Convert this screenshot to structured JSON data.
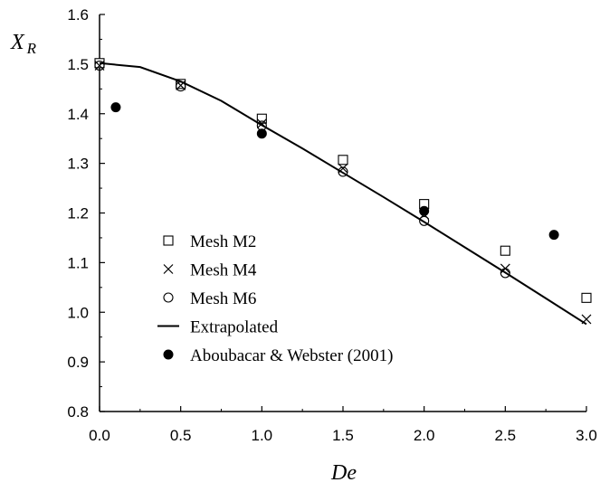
{
  "chart_data": {
    "type": "scatter",
    "xlabel": "De",
    "ylabel": "X",
    "ylabel_sub": "R",
    "xlim": [
      0.0,
      3.0
    ],
    "ylim": [
      0.8,
      1.6
    ],
    "xticks": [
      "0.0",
      "0.5",
      "1.0",
      "1.5",
      "2.0",
      "2.5",
      "3.0"
    ],
    "yticks": [
      "0.8",
      "0.9",
      "1.0",
      "1.1",
      "1.2",
      "1.3",
      "1.4",
      "1.5",
      "1.6"
    ],
    "grid": false,
    "legend_position": "lower-left",
    "series": [
      {
        "name": "Mesh M2",
        "marker": "square",
        "points": [
          [
            0.0,
            1.502
          ],
          [
            0.5,
            1.46
          ],
          [
            1.0,
            1.39
          ],
          [
            1.5,
            1.307
          ],
          [
            2.0,
            1.218
          ],
          [
            2.5,
            1.124
          ],
          [
            3.0,
            1.029
          ]
        ]
      },
      {
        "name": "Mesh M4",
        "marker": "x",
        "points": [
          [
            0.0,
            1.497
          ],
          [
            0.5,
            1.457
          ],
          [
            1.0,
            1.38
          ],
          [
            1.5,
            1.29
          ],
          [
            2.0,
            1.197
          ],
          [
            2.5,
            1.088
          ],
          [
            3.0,
            0.986
          ]
        ]
      },
      {
        "name": "Mesh M6",
        "marker": "circle-open",
        "points": [
          [
            0.0,
            1.497
          ],
          [
            0.5,
            1.455
          ],
          [
            1.0,
            1.376
          ],
          [
            1.5,
            1.283
          ],
          [
            2.0,
            1.184
          ],
          [
            2.5,
            1.079
          ]
        ]
      },
      {
        "name": "Extrapolated",
        "marker": "line",
        "points": [
          [
            0.0,
            1.502
          ],
          [
            0.25,
            1.494
          ],
          [
            0.5,
            1.465
          ],
          [
            0.75,
            1.426
          ],
          [
            1.0,
            1.377
          ],
          [
            1.25,
            1.33
          ],
          [
            1.5,
            1.281
          ],
          [
            1.75,
            1.232
          ],
          [
            2.0,
            1.182
          ],
          [
            2.25,
            1.131
          ],
          [
            2.5,
            1.08
          ],
          [
            2.75,
            1.028
          ],
          [
            3.0,
            0.976
          ]
        ]
      },
      {
        "name": "Aboubacar & Webster (2001)",
        "marker": "circle-filled",
        "points": [
          [
            0.1,
            1.413
          ],
          [
            1.0,
            1.36
          ],
          [
            2.0,
            1.204
          ],
          [
            2.8,
            1.156
          ]
        ]
      }
    ]
  }
}
